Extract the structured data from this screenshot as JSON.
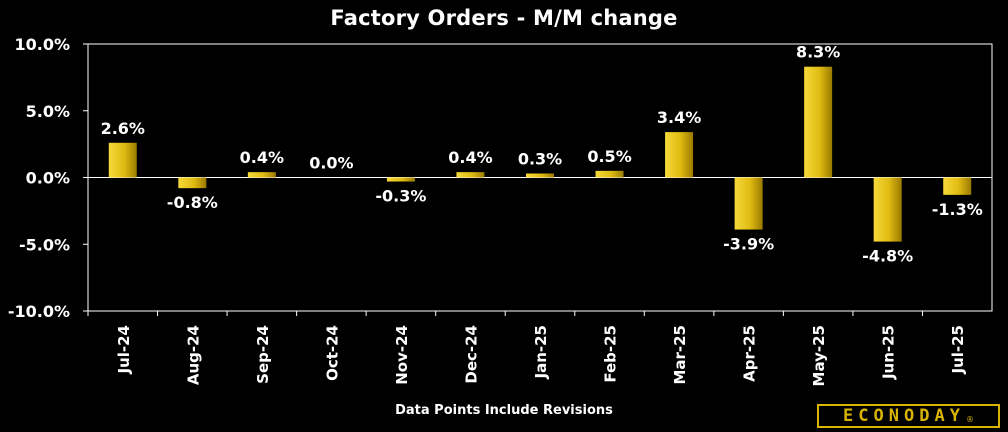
{
  "chart_data": {
    "type": "bar",
    "title": "Factory Orders - M/M change",
    "categories": [
      "Jul-24",
      "Aug-24",
      "Sep-24",
      "Oct-24",
      "Nov-24",
      "Dec-24",
      "Jan-25",
      "Feb-25",
      "Mar-25",
      "Apr-25",
      "May-25",
      "Jun-25",
      "Jul-25"
    ],
    "values": [
      2.6,
      -0.8,
      0.4,
      0.0,
      -0.3,
      0.4,
      0.3,
      0.5,
      3.4,
      -3.9,
      8.3,
      -4.8,
      -1.3
    ],
    "data_labels": [
      "2.6%",
      "-0.8%",
      "0.4%",
      "0.0%",
      "-0.3%",
      "0.4%",
      "0.3%",
      "0.5%",
      "3.4%",
      "-3.9%",
      "8.3%",
      "-4.8%",
      "-1.3%"
    ],
    "ylim": [
      -10,
      10
    ],
    "yticks": [
      10,
      5,
      0,
      -5,
      -10
    ],
    "ytick_labels": [
      "10.0%",
      "5.0%",
      "0.0%",
      "-5.0%",
      "-10.0%"
    ],
    "xlabel": "",
    "ylabel": "",
    "grid": false,
    "legend": "none",
    "bar_color_top": "#f2d23c",
    "bar_color_bottom": "#a88400"
  },
  "footnote": "Data Points Include Revisions",
  "logo": {
    "text": "ECONODAY",
    "mark": "®",
    "color": "#d8b400"
  }
}
